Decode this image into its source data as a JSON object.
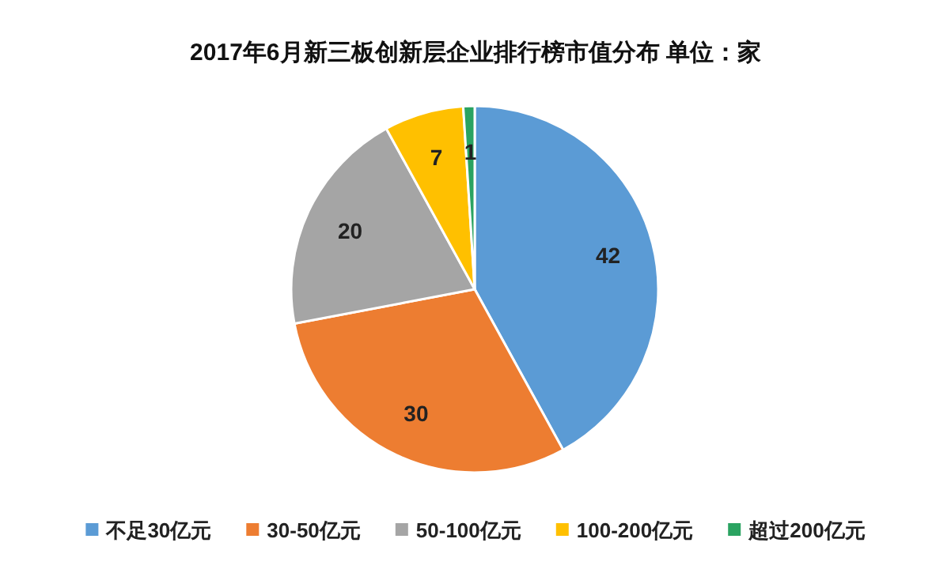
{
  "chart_data": {
    "type": "pie",
    "title": "2017年6月新三板创新层企业排行榜市值分布 单位：家",
    "categories": [
      "不足30亿元",
      "30-50亿元",
      "50-100亿元",
      "100-200亿元",
      "超过200亿元"
    ],
    "values": [
      42,
      30,
      20,
      7,
      1
    ],
    "colors": [
      "#5b9bd5",
      "#ed7d31",
      "#a5a5a5",
      "#ffc000",
      "#2aa361"
    ],
    "data_labels": true,
    "legend": "bottom"
  }
}
